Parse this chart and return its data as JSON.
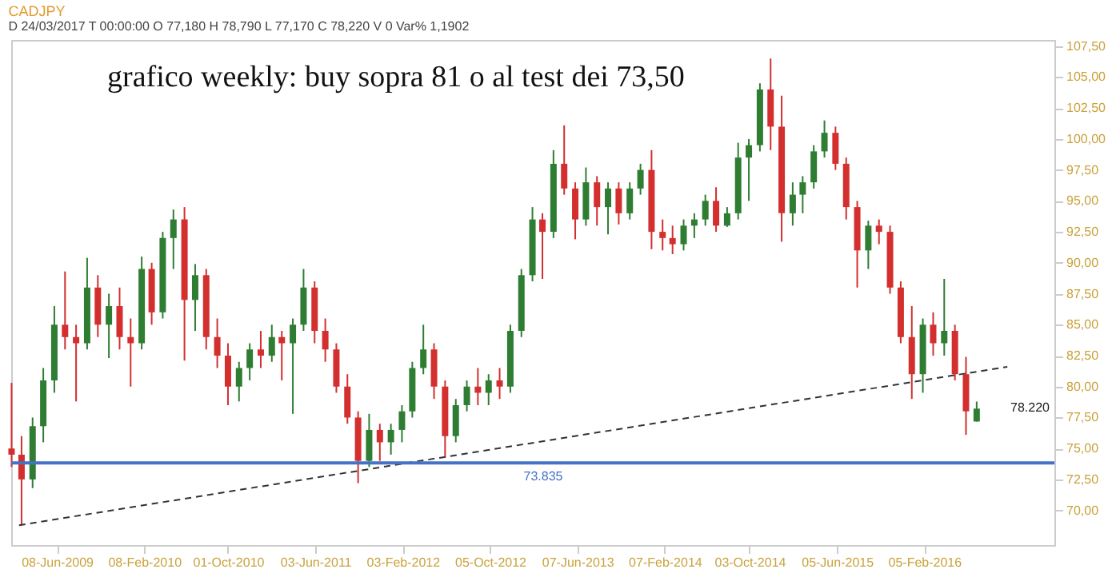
{
  "chart_data": {
    "type": "candlestick",
    "title": "CADJPY",
    "subtitle": "D 24/03/2017  T 00:00:00  O 77,180  H 78,790  L 77,170  C 78,220  V 0  Var% 1,1902",
    "annotations": [
      "grafico weekly: buy sopra 81 o al test dei 73,50",
      "78.220"
    ],
    "x": [
      "2009-02-01",
      "2009-03-01",
      "2009-04-01",
      "2009-05-01",
      "2009-06-01",
      "2009-07-01",
      "2009-08-01",
      "2009-09-01",
      "2009-10-01",
      "2009-11-01",
      "2009-12-01",
      "2010-01-01",
      "2010-02-01",
      "2010-03-01",
      "2010-04-01",
      "2010-05-01",
      "2010-06-01",
      "2010-07-01",
      "2010-08-01",
      "2010-09-01",
      "2010-10-01",
      "2010-11-01",
      "2010-12-01",
      "2011-01-01",
      "2011-02-01",
      "2011-03-01",
      "2011-04-01",
      "2011-05-01",
      "2011-06-01",
      "2011-07-01",
      "2011-08-01",
      "2011-09-01",
      "2011-10-01",
      "2011-11-01",
      "2011-12-01",
      "2012-01-01",
      "2012-02-01",
      "2012-03-01",
      "2012-04-01",
      "2012-05-01",
      "2012-06-01",
      "2012-07-01",
      "2012-08-01",
      "2012-09-01",
      "2012-10-01",
      "2012-11-01",
      "2012-12-01",
      "2013-01-01",
      "2013-02-01",
      "2013-03-01",
      "2013-04-01",
      "2013-05-01",
      "2013-06-01",
      "2013-07-01",
      "2013-08-01",
      "2013-09-01",
      "2013-10-01",
      "2013-11-01",
      "2013-12-01",
      "2014-01-01",
      "2014-02-01",
      "2014-03-01",
      "2014-04-01",
      "2014-05-01",
      "2014-06-01",
      "2014-07-01",
      "2014-08-01",
      "2014-09-01",
      "2014-10-01",
      "2014-11-01",
      "2014-12-01",
      "2015-01-01",
      "2015-02-01",
      "2015-03-01",
      "2015-04-01",
      "2015-05-01",
      "2015-06-01",
      "2015-07-01",
      "2015-08-01",
      "2015-09-01",
      "2015-10-01",
      "2015-11-01",
      "2015-12-01",
      "2016-01-01",
      "2016-02-01",
      "2016-03-01",
      "2016-04-01",
      "2016-05-01",
      "2016-06-01",
      "2016-07-01"
    ],
    "ohlc": [
      [
        75.0,
        80.3,
        73.5,
        74.5
      ],
      [
        74.5,
        76.0,
        68.8,
        72.5
      ],
      [
        72.5,
        77.5,
        71.8,
        76.8
      ],
      [
        76.8,
        81.5,
        75.5,
        80.5
      ],
      [
        80.5,
        86.5,
        79.5,
        85.0
      ],
      [
        85.0,
        89.3,
        83.0,
        84.0
      ],
      [
        84.0,
        85.0,
        78.8,
        83.5
      ],
      [
        83.5,
        90.4,
        83.0,
        88.0
      ],
      [
        88.0,
        89.0,
        84.0,
        85.0
      ],
      [
        85.0,
        87.5,
        82.3,
        86.5
      ],
      [
        86.5,
        88.0,
        83.0,
        84.0
      ],
      [
        84.0,
        85.5,
        80.0,
        83.5
      ],
      [
        83.5,
        90.5,
        83.0,
        89.5
      ],
      [
        89.5,
        90.0,
        85.0,
        86.0
      ],
      [
        86.0,
        92.5,
        85.5,
        92.0
      ],
      [
        92.0,
        94.3,
        89.5,
        93.5
      ],
      [
        93.5,
        94.5,
        82.1,
        87.0
      ],
      [
        87.0,
        89.9,
        84.5,
        89.0
      ],
      [
        89.0,
        89.5,
        83.0,
        84.0
      ],
      [
        84.0,
        85.5,
        81.5,
        82.5
      ],
      [
        82.5,
        83.5,
        78.5,
        80.0
      ],
      [
        80.0,
        82.0,
        78.8,
        81.5
      ],
      [
        81.5,
        83.5,
        80.5,
        83.0
      ],
      [
        83.0,
        84.5,
        81.5,
        82.5
      ],
      [
        82.5,
        85.0,
        82.0,
        84.0
      ],
      [
        84.0,
        84.5,
        80.5,
        83.5
      ],
      [
        83.5,
        85.5,
        77.8,
        85.0
      ],
      [
        85.0,
        89.5,
        84.5,
        88.0
      ],
      [
        88.0,
        88.5,
        83.5,
        84.5
      ],
      [
        84.5,
        85.5,
        82.0,
        83.0
      ],
      [
        83.0,
        83.5,
        79.5,
        80.0
      ],
      [
        80.0,
        81.0,
        77.0,
        77.5
      ],
      [
        77.5,
        78.0,
        72.2,
        74.0
      ],
      [
        74.0,
        77.8,
        73.5,
        76.5
      ],
      [
        76.5,
        77.0,
        74.0,
        75.5
      ],
      [
        75.5,
        77.0,
        74.5,
        76.5
      ],
      [
        76.5,
        78.5,
        75.5,
        78.0
      ],
      [
        78.0,
        82.0,
        77.5,
        81.5
      ],
      [
        81.5,
        85.0,
        81.0,
        83.0
      ],
      [
        83.0,
        83.5,
        79.0,
        80.0
      ],
      [
        80.0,
        80.5,
        74.3,
        76.0
      ],
      [
        76.0,
        79.0,
        75.5,
        78.5
      ],
      [
        78.5,
        80.5,
        78.0,
        80.0
      ],
      [
        80.0,
        81.5,
        78.5,
        79.5
      ],
      [
        79.5,
        81.0,
        78.5,
        80.5
      ],
      [
        80.5,
        81.5,
        79.0,
        80.0
      ],
      [
        80.0,
        85.0,
        79.5,
        84.5
      ],
      [
        84.5,
        89.5,
        84.0,
        89.0
      ],
      [
        89.0,
        94.5,
        88.5,
        93.5
      ],
      [
        93.5,
        94.0,
        88.7,
        92.5
      ],
      [
        92.5,
        99.1,
        92.0,
        98.0
      ],
      [
        98.0,
        101.1,
        95.5,
        96.0
      ],
      [
        96.0,
        96.5,
        91.9,
        93.5
      ],
      [
        93.5,
        97.7,
        93.0,
        96.5
      ],
      [
        96.5,
        97.0,
        93.0,
        94.5
      ],
      [
        94.5,
        96.5,
        92.3,
        96.0
      ],
      [
        96.0,
        96.5,
        93.1,
        94.0
      ],
      [
        94.0,
        96.5,
        93.5,
        96.0
      ],
      [
        96.0,
        98.0,
        95.5,
        97.5
      ],
      [
        97.5,
        99.1,
        91.1,
        92.5
      ],
      [
        92.5,
        93.5,
        91.0,
        92.0
      ],
      [
        92.0,
        93.0,
        90.7,
        91.5
      ],
      [
        91.5,
        93.5,
        91.0,
        93.0
      ],
      [
        93.0,
        94.0,
        92.0,
        93.5
      ],
      [
        93.5,
        95.5,
        93.0,
        95.0
      ],
      [
        95.0,
        96.1,
        92.5,
        93.0
      ],
      [
        93.0,
        94.5,
        92.9,
        94.0
      ],
      [
        94.0,
        99.7,
        93.5,
        98.5
      ],
      [
        98.5,
        100.0,
        95.0,
        99.5
      ],
      [
        99.5,
        104.5,
        99.0,
        104.0
      ],
      [
        104.0,
        106.5,
        99.1,
        101.0
      ],
      [
        101.0,
        103.5,
        91.7,
        94.0
      ],
      [
        94.0,
        96.5,
        93.0,
        95.5
      ],
      [
        95.5,
        97.0,
        94.0,
        96.5
      ],
      [
        96.5,
        99.5,
        96.0,
        99.0
      ],
      [
        99.0,
        101.5,
        98.5,
        100.5
      ],
      [
        100.5,
        101.0,
        97.5,
        98.0
      ],
      [
        98.0,
        98.5,
        93.5,
        94.5
      ],
      [
        94.5,
        95.0,
        88.0,
        91.0
      ],
      [
        91.0,
        93.4,
        89.5,
        93.0
      ],
      [
        93.0,
        93.5,
        91.5,
        92.5
      ],
      [
        92.5,
        93.0,
        87.5,
        88.0
      ],
      [
        88.0,
        88.5,
        83.5,
        84.0
      ],
      [
        84.0,
        86.5,
        79.0,
        81.0
      ],
      [
        81.0,
        85.5,
        79.5,
        85.0
      ],
      [
        85.0,
        86.0,
        82.5,
        83.5
      ],
      [
        83.5,
        88.7,
        82.5,
        84.5
      ],
      [
        84.5,
        85.0,
        80.5,
        81.0
      ],
      [
        81.0,
        82.4,
        76.1,
        78.0
      ],
      [
        77.18,
        78.79,
        77.17,
        78.22
      ]
    ],
    "colors": [
      "#d32f2f",
      "#d32f2f",
      "#2e7d32",
      "#2e7d32",
      "#2e7d32",
      "#d32f2f",
      "#d32f2f",
      "#2e7d32",
      "#d32f2f",
      "#2e7d32",
      "#d32f2f",
      "#d32f2f",
      "#2e7d32",
      "#d32f2f",
      "#2e7d32",
      "#2e7d32",
      "#d32f2f",
      "#2e7d32",
      "#d32f2f",
      "#d32f2f",
      "#d32f2f",
      "#2e7d32",
      "#2e7d32",
      "#d32f2f",
      "#2e7d32",
      "#d32f2f",
      "#2e7d32",
      "#2e7d32",
      "#d32f2f",
      "#d32f2f",
      "#d32f2f",
      "#d32f2f",
      "#d32f2f",
      "#2e7d32",
      "#d32f2f",
      "#2e7d32",
      "#2e7d32",
      "#2e7d32",
      "#2e7d32",
      "#d32f2f",
      "#d32f2f",
      "#2e7d32",
      "#2e7d32",
      "#d32f2f",
      "#2e7d32",
      "#d32f2f",
      "#2e7d32",
      "#2e7d32",
      "#2e7d32",
      "#d32f2f",
      "#2e7d32",
      "#d32f2f",
      "#d32f2f",
      "#2e7d32",
      "#d32f2f",
      "#2e7d32",
      "#d32f2f",
      "#2e7d32",
      "#2e7d32",
      "#d32f2f",
      "#d32f2f",
      "#d32f2f",
      "#2e7d32",
      "#2e7d32",
      "#2e7d32",
      "#d32f2f",
      "#2e7d32",
      "#2e7d32",
      "#2e7d32",
      "#2e7d32",
      "#d32f2f",
      "#d32f2f",
      "#2e7d32",
      "#2e7d32",
      "#2e7d32",
      "#2e7d32",
      "#d32f2f",
      "#d32f2f",
      "#d32f2f",
      "#2e7d32",
      "#d32f2f",
      "#d32f2f",
      "#d32f2f",
      "#d32f2f",
      "#2e7d32",
      "#d32f2f",
      "#2e7d32",
      "#d32f2f",
      "#d32f2f",
      "#2e7d32"
    ],
    "series": [
      {
        "type": "line",
        "x": [
          "2009-02-22",
          "2016-09-25"
        ],
        "values": [
          68.8,
          81.6
        ],
        "color": "#333333",
        "line_style": "dashed"
      }
    ],
    "ref_lines": [
      {
        "axis": "y",
        "value": 73.835,
        "label": "73.835",
        "color": "#4472c4"
      }
    ],
    "xlim": [
      "2009-01-31",
      "2017-02-04"
    ],
    "xticks": [
      {
        "value": "2009-06-08",
        "label": "08-Jun-2009"
      },
      {
        "value": "2010-02-08",
        "label": "08-Feb-2010"
      },
      {
        "value": "2010-10-01",
        "label": "01-Oct-2010"
      },
      {
        "value": "2011-06-03",
        "label": "03-Jun-2011"
      },
      {
        "value": "2012-02-03",
        "label": "03-Feb-2012"
      },
      {
        "value": "2012-10-05",
        "label": "05-Oct-2012"
      },
      {
        "value": "2013-06-07",
        "label": "07-Jun-2013"
      },
      {
        "value": "2014-02-07",
        "label": "07-Feb-2014"
      },
      {
        "value": "2014-10-03",
        "label": "03-Oct-2014"
      },
      {
        "value": "2015-06-05",
        "label": "05-Jun-2015"
      },
      {
        "value": "2016-02-05",
        "label": "05-Feb-2016"
      }
    ],
    "ylim": [
      67.2,
      108
    ],
    "yticks": [
      {
        "value": 70,
        "label": "70,00"
      },
      {
        "value": 72.5,
        "label": "72,50"
      },
      {
        "value": 75,
        "label": "75,00"
      },
      {
        "value": 77.5,
        "label": "77,50"
      },
      {
        "value": 80,
        "label": "80,00"
      },
      {
        "value": 82.5,
        "label": "82,50"
      },
      {
        "value": 85,
        "label": "85,00"
      },
      {
        "value": 87.5,
        "label": "87,50"
      },
      {
        "value": 90,
        "label": "90,00"
      },
      {
        "value": 92.5,
        "label": "92,50"
      },
      {
        "value": 95,
        "label": "95,00"
      },
      {
        "value": 97.5,
        "label": "97,50"
      },
      {
        "value": 100,
        "label": "100,00"
      },
      {
        "value": 102.5,
        "label": "102,50"
      },
      {
        "value": 105,
        "label": "105,00"
      },
      {
        "value": 107.5,
        "label": "107,50"
      }
    ]
  }
}
